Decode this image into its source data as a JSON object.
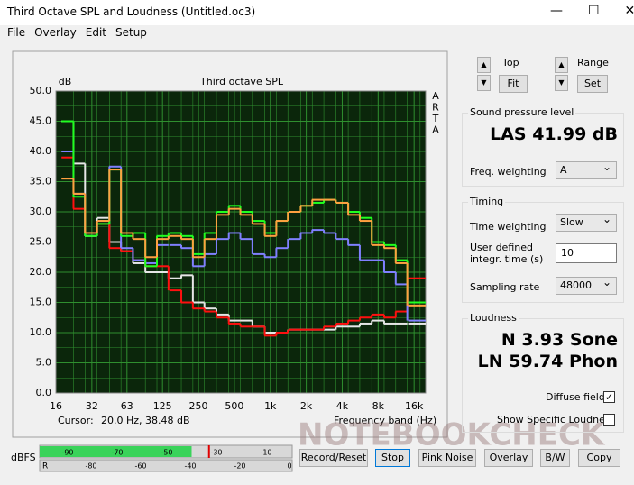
{
  "window": {
    "title": "Third Octave SPL and Loudness (Untitled.oc3)"
  },
  "menu": [
    "File",
    "Overlay",
    "Edit",
    "Setup"
  ],
  "chart_data": {
    "type": "line",
    "step": true,
    "log_x": true,
    "title": "Third octave SPL",
    "y_label": "dB",
    "side_label": [
      "A",
      "R",
      "T",
      "A"
    ],
    "x_label": "Frequency band (Hz)",
    "cursor_label": "Cursor:",
    "cursor_value": "20.0 Hz, 38.48 dB",
    "x": [
      20,
      25,
      31.5,
      40,
      50,
      63,
      80,
      100,
      125,
      160,
      200,
      250,
      315,
      400,
      500,
      630,
      800,
      1000,
      1250,
      1600,
      2000,
      2500,
      3150,
      4000,
      5000,
      6300,
      8000,
      10000,
      12500,
      16000,
      20000
    ],
    "xlim": [
      16,
      20000
    ],
    "xticks": [
      16,
      32,
      63,
      125,
      250,
      500,
      {
        "value": 1000,
        "label": "1k"
      },
      {
        "value": 2000,
        "label": "2k"
      },
      {
        "value": 4000,
        "label": "4k"
      },
      {
        "value": 8000,
        "label": "8k"
      },
      {
        "value": 16000,
        "label": "16k"
      }
    ],
    "ylim": [
      0,
      50
    ],
    "yticks": [
      {
        "value": 0,
        "label": "0.0"
      },
      {
        "value": 5,
        "label": "5.0"
      },
      {
        "value": 10,
        "label": "10.0"
      },
      {
        "value": 15,
        "label": "15.0"
      },
      {
        "value": 20,
        "label": "20.0"
      },
      {
        "value": 25,
        "label": "25.0"
      },
      {
        "value": 30,
        "label": "30.0"
      },
      {
        "value": 35,
        "label": "35.0"
      },
      {
        "value": 40,
        "label": "40.0"
      },
      {
        "value": 45,
        "label": "45.0"
      },
      {
        "value": 50,
        "label": "50.0"
      }
    ],
    "grid": true,
    "background": "#0b260b",
    "grid_color": "#2f8f2f",
    "series": [
      {
        "color": "#e6e6e6",
        "values": [
          45,
          38,
          26,
          29,
          25,
          23.5,
          21.5,
          20,
          20,
          19,
          19.5,
          15,
          14,
          13,
          12,
          12,
          11,
          10,
          10,
          10.5,
          10.5,
          10.5,
          10.5,
          11,
          11,
          11.5,
          12,
          11.5,
          11.5,
          11.5,
          11.5
        ]
      },
      {
        "color": "#ff1010",
        "values": [
          39,
          30.5,
          26.5,
          28,
          24,
          23.5,
          22,
          21,
          21,
          17,
          15,
          14,
          13.5,
          12.5,
          11.5,
          11,
          11,
          9.5,
          10,
          10.5,
          10.5,
          10.5,
          11,
          11.5,
          12,
          12.5,
          13,
          12.5,
          13.5,
          19,
          19
        ]
      },
      {
        "color": "#8080ff",
        "values": [
          40,
          33,
          26.5,
          28.5,
          37.5,
          24,
          22,
          21.5,
          24.5,
          24.5,
          24,
          21,
          23,
          25.5,
          26.5,
          25.5,
          23,
          22.5,
          24,
          25.5,
          26.5,
          27,
          26.5,
          25.5,
          24.5,
          22,
          22,
          20,
          18,
          12,
          12
        ]
      },
      {
        "color": "#20ff20",
        "values": [
          45,
          32.5,
          26,
          28,
          37,
          26,
          26.5,
          21,
          26,
          26.5,
          26,
          23,
          26.5,
          30,
          31,
          30,
          28.5,
          26.5,
          28.5,
          30,
          31,
          31.5,
          32,
          31.5,
          30,
          29,
          25,
          24.5,
          22,
          15,
          15
        ]
      },
      {
        "color": "#ffa040",
        "values": [
          35.5,
          33,
          26.5,
          28.5,
          37,
          26.5,
          25.5,
          22.5,
          25.5,
          26,
          25.5,
          22.5,
          25.5,
          29.5,
          30.5,
          29.5,
          28,
          26,
          28.5,
          30,
          31,
          32,
          32,
          31.5,
          29.5,
          28.5,
          24.5,
          24,
          21.5,
          14.5,
          14.5
        ]
      }
    ]
  },
  "controls": {
    "top_label": "Top",
    "fit_button": "Fit",
    "range_label": "Range",
    "set_button": "Set"
  },
  "spl": {
    "title": "Sound pressure level",
    "reading": "LAS 41.99 dB",
    "freq_weighting_label": "Freq. weighting",
    "freq_weighting": "A"
  },
  "timing": {
    "title": "Timing",
    "time_weighting_label": "Time weighting",
    "time_weighting": "Slow",
    "integr_label_1": "User defined",
    "integr_label_2": "integr. time (s)",
    "integr_time": "10",
    "sampling_rate_label": "Sampling rate",
    "sampling_rate": "48000"
  },
  "loudness": {
    "title": "Loudness",
    "n": "N 3.93 Sone",
    "ln": "LN 59.74 Phon",
    "diffuse_field_label": "Diffuse field",
    "diffuse_field_checked": true,
    "specific_label": "Show Specific Loudness",
    "specific_checked": false
  },
  "meter": {
    "label": "dBFS",
    "left": "L",
    "right": "R",
    "left_scale": [
      -90,
      -70,
      -50,
      -30,
      -10
    ],
    "right_scale": [
      -80,
      -60,
      -40,
      -20,
      0
    ],
    "left_level": -40,
    "left_peak": -33
  },
  "buttons": [
    "Record/Reset",
    "Stop",
    "Pink Noise",
    "Overlay",
    "B/W",
    "Copy"
  ],
  "watermark": "NOTEBOOKCHECK"
}
